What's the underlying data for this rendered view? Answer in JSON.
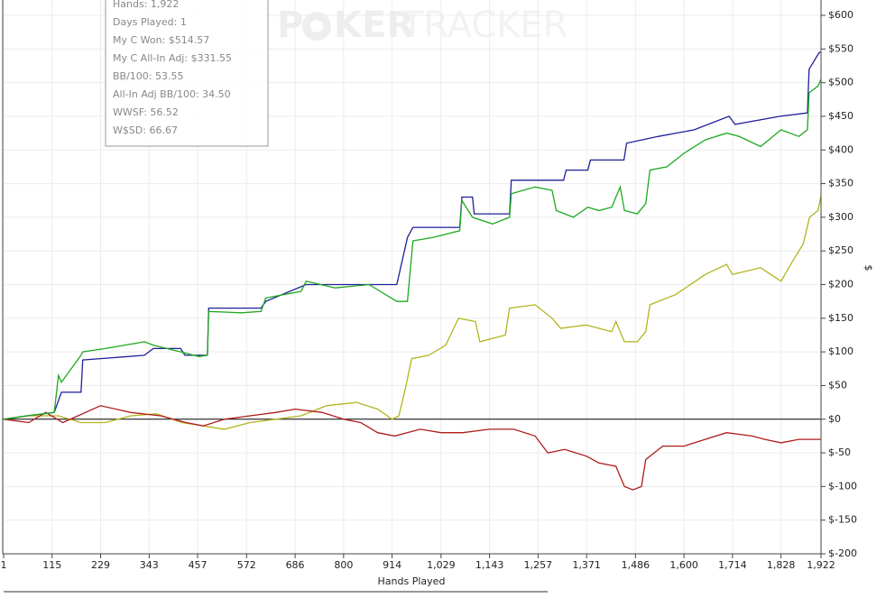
{
  "chart_data": {
    "type": "line",
    "xlabel": "Hands Played",
    "ylabel": "$",
    "watermark": [
      "P",
      "KER",
      "TRACKER"
    ],
    "annotations": [
      "Hands: 1,922",
      "Days Played: 1",
      "My C Won: $514.57",
      "My C All-In Adj: $331.55",
      "BB/100: 53.55",
      "All-In Adj BB/100: 34.50",
      "WWSF: 56.52",
      "W$SD: 66.67"
    ],
    "xlim": [
      1,
      1922
    ],
    "ylim": [
      -200,
      600
    ],
    "grid": true,
    "xticks": [
      1,
      115,
      229,
      343,
      457,
      572,
      686,
      800,
      914,
      {
        "value": 1029,
        "label": "1,029"
      },
      {
        "value": 1143,
        "label": "1,143"
      },
      {
        "value": 1257,
        "label": "1,257"
      },
      {
        "value": 1371,
        "label": "1,371"
      },
      {
        "value": 1486,
        "label": "1,486"
      },
      {
        "value": 1600,
        "label": "1,600"
      },
      {
        "value": 1714,
        "label": "1,714"
      },
      {
        "value": 1828,
        "label": "1,828"
      },
      {
        "value": 1922,
        "label": "1,922"
      }
    ],
    "yticks": [
      {
        "value": 600,
        "label": "$600"
      },
      {
        "value": 550,
        "label": "$550"
      },
      {
        "value": 500,
        "label": "$500"
      },
      {
        "value": 450,
        "label": "$450"
      },
      {
        "value": 400,
        "label": "$400"
      },
      {
        "value": 350,
        "label": "$350"
      },
      {
        "value": 300,
        "label": "$300"
      },
      {
        "value": 250,
        "label": "$250"
      },
      {
        "value": 200,
        "label": "$200"
      },
      {
        "value": 150,
        "label": "$150"
      },
      {
        "value": 100,
        "label": "$100"
      },
      {
        "value": 50,
        "label": "$50"
      },
      {
        "value": 0,
        "label": "$0"
      },
      {
        "value": -50,
        "label": "$-50"
      },
      {
        "value": -100,
        "label": "$-100"
      },
      {
        "value": -150,
        "label": "$-150"
      },
      {
        "value": -200,
        "label": "$-200"
      }
    ],
    "series": [
      {
        "color": "#b4b41e",
        "x": [
          1,
          60,
          130,
          183,
          240,
          300,
          360,
          420,
          470,
          520,
          580,
          640,
          700,
          760,
          830,
          880,
          914,
          930,
          945,
          960,
          1000,
          1040,
          1070,
          1110,
          1120,
          1180,
          1190,
          1250,
          1290,
          1310,
          1370,
          1430,
          1440,
          1460,
          1490,
          1510,
          1520,
          1580,
          1650,
          1700,
          1714,
          1780,
          1828,
          1860,
          1880,
          1895,
          1915,
          1922
        ],
        "values": [
          0,
          5,
          5,
          -5,
          -5,
          5,
          8,
          -5,
          -10,
          -15,
          -5,
          0,
          5,
          20,
          25,
          15,
          0,
          5,
          45,
          90,
          95,
          110,
          150,
          145,
          115,
          125,
          165,
          170,
          150,
          135,
          140,
          130,
          145,
          115,
          115,
          130,
          170,
          185,
          215,
          230,
          215,
          225,
          205,
          240,
          260,
          300,
          310,
          332
        ]
      },
      {
        "color": "#b01c1c",
        "x": [
          1,
          60,
          100,
          140,
          229,
          300,
          370,
          430,
          470,
          520,
          580,
          640,
          686,
          750,
          800,
          840,
          880,
          920,
          980,
          1029,
          1080,
          1143,
          1200,
          1250,
          1280,
          1320,
          1371,
          1400,
          1440,
          1460,
          1480,
          1500,
          1510,
          1550,
          1600,
          1650,
          1700,
          1760,
          1790,
          1828,
          1870,
          1922
        ],
        "values": [
          0,
          -5,
          10,
          -5,
          20,
          10,
          5,
          -5,
          -10,
          0,
          5,
          10,
          15,
          10,
          0,
          -5,
          -20,
          -25,
          -15,
          -20,
          -20,
          -15,
          -15,
          -25,
          -50,
          -45,
          -55,
          -65,
          -70,
          -100,
          -105,
          -100,
          -60,
          -40,
          -40,
          -30,
          -20,
          -25,
          -30,
          -35,
          -30,
          -30
        ]
      },
      {
        "color": "#1f1f9a",
        "x": [
          1,
          56,
          120,
          137,
          183,
          187,
          332,
          353,
          417,
          427,
          480,
          483,
          606,
          617,
          712,
          925,
          950,
          963,
          1073,
          1078,
          1103,
          1107,
          1190,
          1194,
          1317,
          1323,
          1374,
          1380,
          1459,
          1465,
          1539,
          1624,
          1706,
          1720,
          1826,
          1890,
          1894,
          1918,
          1922
        ],
        "values": [
          0,
          5,
          10,
          40,
          40,
          88,
          95,
          105,
          105,
          95,
          95,
          165,
          165,
          175,
          200,
          200,
          270,
          285,
          285,
          330,
          330,
          305,
          305,
          355,
          355,
          370,
          370,
          385,
          385,
          410,
          420,
          430,
          450,
          438,
          450,
          455,
          520,
          545,
          545
        ]
      },
      {
        "color": "#1fa81f",
        "x": [
          1,
          56,
          120,
          130,
          137,
          183,
          187,
          240,
          332,
          353,
          417,
          460,
          480,
          483,
          560,
          606,
          617,
          700,
          712,
          780,
          860,
          925,
          950,
          963,
          1010,
          1073,
          1078,
          1103,
          1150,
          1190,
          1194,
          1250,
          1290,
          1300,
          1340,
          1374,
          1400,
          1430,
          1440,
          1450,
          1460,
          1490,
          1510,
          1520,
          1560,
          1600,
          1650,
          1700,
          1730,
          1780,
          1828,
          1870,
          1890,
          1894,
          1915,
          1922
        ],
        "values": [
          0,
          5,
          10,
          65,
          55,
          95,
          100,
          105,
          115,
          110,
          100,
          93,
          95,
          160,
          158,
          160,
          180,
          190,
          205,
          195,
          200,
          175,
          175,
          265,
          270,
          280,
          325,
          300,
          290,
          300,
          335,
          345,
          340,
          310,
          300,
          315,
          310,
          315,
          330,
          345,
          310,
          305,
          320,
          370,
          375,
          395,
          415,
          425,
          420,
          405,
          430,
          420,
          430,
          485,
          495,
          505
        ]
      }
    ]
  }
}
